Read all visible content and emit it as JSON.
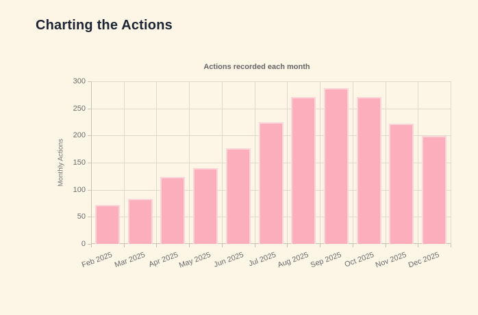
{
  "page": {
    "title": "Charting the Actions",
    "background_color": "#fdf5e6",
    "title_color": "#1b2433"
  },
  "chart_data": {
    "type": "bar",
    "title": "Actions recorded each month",
    "categories": [
      "Feb 2025",
      "Mar 2025",
      "Apr 2025",
      "May 2025",
      "Jun 2025",
      "Jul 2025",
      "Aug 2025",
      "Sep 2025",
      "Oct 2025",
      "Nov 2025",
      "Dec 2025"
    ],
    "values": [
      72,
      83,
      124,
      140,
      177,
      224,
      271,
      287,
      271,
      222,
      199
    ],
    "xlabel": "",
    "ylabel": "Monthly Actions",
    "ylim": [
      0,
      300
    ],
    "ytick_step": 50,
    "yticks": [
      0,
      50,
      100,
      150,
      200,
      250,
      300
    ],
    "grid": true,
    "legend": false,
    "colors": {
      "bar_fill": "#fdaebc",
      "bar_border": "#fdd5d8",
      "grid": "#ded9cc",
      "axis": "#c6c1b4",
      "tick_text": "#6a6a6a",
      "chart_title_text": "#666666"
    }
  }
}
